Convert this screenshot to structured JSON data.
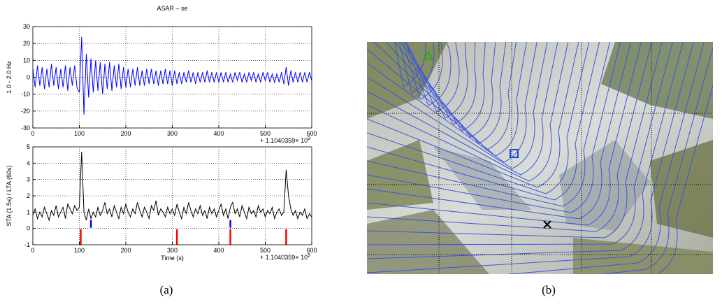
{
  "chart_data": [
    {
      "type": "line",
      "title": "ASAR – se",
      "ylabel": "1.0 - 2.0 Hz",
      "x_offset_label": "+ 1.1040359× 10",
      "x_offset_exponent": "9",
      "color": "#0000ff",
      "grid": true,
      "xlim": [
        0,
        600
      ],
      "xticks": [
        0,
        100,
        200,
        300,
        400,
        500,
        600
      ],
      "ylim": [
        -30,
        30
      ],
      "yticks": [
        -30,
        -20,
        -10,
        0,
        10,
        20,
        30
      ],
      "x": [
        0,
        5,
        10,
        15,
        20,
        25,
        30,
        35,
        40,
        45,
        50,
        55,
        60,
        65,
        70,
        75,
        80,
        85,
        90,
        95,
        100,
        105,
        110,
        115,
        120,
        125,
        130,
        135,
        140,
        145,
        150,
        155,
        160,
        165,
        170,
        175,
        180,
        185,
        190,
        195,
        200,
        205,
        210,
        215,
        220,
        225,
        230,
        235,
        240,
        245,
        250,
        255,
        260,
        265,
        270,
        275,
        280,
        285,
        290,
        295,
        300,
        305,
        310,
        315,
        320,
        325,
        330,
        335,
        340,
        345,
        350,
        355,
        360,
        365,
        370,
        375,
        380,
        385,
        390,
        395,
        400,
        405,
        410,
        415,
        420,
        425,
        430,
        435,
        440,
        445,
        450,
        455,
        460,
        465,
        470,
        475,
        480,
        485,
        490,
        495,
        500,
        505,
        510,
        515,
        520,
        525,
        530,
        535,
        540,
        545,
        550,
        555,
        560,
        565,
        570,
        575,
        580,
        585,
        590,
        595,
        600
      ],
      "values": [
        5,
        -6,
        7,
        -5,
        6,
        -7,
        5,
        -6,
        8,
        -5,
        6,
        -7,
        5,
        -6,
        7,
        -8,
        6,
        -5,
        7,
        -6,
        -9,
        24,
        -22,
        14,
        -12,
        11,
        -9,
        10,
        -8,
        9,
        -10,
        8,
        -7,
        9,
        -8,
        7,
        -6,
        8,
        -7,
        6,
        -6,
        5,
        -6,
        5,
        -5,
        6,
        -5,
        4,
        -5,
        5,
        -4,
        5,
        -4,
        4,
        -5,
        4,
        -4,
        5,
        -4,
        4,
        -5,
        4,
        -4,
        3,
        -4,
        3,
        -3,
        4,
        -3,
        3,
        -4,
        3,
        -3,
        3,
        -3,
        4,
        -3,
        3,
        -3,
        3,
        -3,
        3,
        -3,
        3,
        -3,
        2,
        -3,
        3,
        -2,
        3,
        -3,
        2,
        -3,
        3,
        -2,
        3,
        -3,
        2,
        -3,
        3,
        -2,
        3,
        -3,
        2,
        -3,
        2,
        -3,
        3,
        -4,
        6,
        -5,
        4,
        -3,
        3,
        -3,
        3,
        -3,
        3,
        -3,
        3,
        -2
      ]
    },
    {
      "type": "line",
      "ylabel": "STA (1.5s) / LTA (60s)",
      "xlabel": "Time (s)",
      "x_offset_label": "+ 1.1040359× 10",
      "x_offset_exponent": "9",
      "color": "#000000",
      "grid": true,
      "xlim": [
        0,
        600
      ],
      "xticks": [
        0,
        100,
        200,
        300,
        400,
        500,
        600
      ],
      "ylim": [
        -1,
        5
      ],
      "yticks": [
        -1,
        0,
        1,
        2,
        3,
        4,
        5
      ],
      "x": [
        0,
        5,
        10,
        15,
        20,
        25,
        30,
        35,
        40,
        45,
        50,
        55,
        60,
        65,
        70,
        75,
        80,
        85,
        90,
        95,
        100,
        105,
        110,
        115,
        120,
        125,
        130,
        135,
        140,
        145,
        150,
        155,
        160,
        165,
        170,
        175,
        180,
        185,
        190,
        195,
        200,
        205,
        210,
        215,
        220,
        225,
        230,
        235,
        240,
        245,
        250,
        255,
        260,
        265,
        270,
        275,
        280,
        285,
        290,
        295,
        300,
        305,
        310,
        315,
        320,
        325,
        330,
        335,
        340,
        345,
        350,
        355,
        360,
        365,
        370,
        375,
        380,
        385,
        390,
        395,
        400,
        405,
        410,
        415,
        420,
        425,
        430,
        435,
        440,
        445,
        450,
        455,
        460,
        465,
        470,
        475,
        480,
        485,
        490,
        495,
        500,
        505,
        510,
        515,
        520,
        525,
        530,
        535,
        540,
        545,
        550,
        555,
        560,
        565,
        570,
        575,
        580,
        585,
        590,
        595,
        600
      ],
      "values": [
        0.8,
        1.2,
        0.6,
        1.0,
        0.7,
        1.3,
        0.9,
        0.5,
        1.1,
        0.8,
        1.4,
        0.7,
        1.0,
        1.3,
        0.6,
        1.5,
        1.2,
        0.9,
        1.4,
        1.1,
        1.3,
        4.7,
        1.0,
        0.5,
        1.2,
        0.6,
        1.0,
        0.7,
        1.3,
        0.8,
        1.1,
        1.6,
        0.9,
        1.2,
        0.7,
        1.4,
        1.0,
        0.6,
        1.3,
        0.9,
        1.5,
        1.0,
        0.7,
        1.2,
        0.9,
        1.6,
        1.1,
        0.7,
        1.3,
        1.0,
        0.6,
        1.4,
        1.1,
        1.7,
        0.8,
        1.2,
        1.0,
        0.7,
        1.3,
        0.9,
        1.2,
        0.8,
        1.5,
        1.0,
        0.6,
        1.3,
        0.9,
        1.6,
        1.1,
        0.7,
        1.2,
        0.9,
        1.4,
        0.8,
        1.1,
        0.6,
        1.3,
        0.9,
        1.2,
        0.7,
        1.1,
        1.5,
        0.8,
        1.2,
        0.6,
        1.3,
        1.6,
        0.9,
        1.2,
        0.7,
        1.4,
        1.0,
        0.6,
        1.3,
        0.9,
        1.1,
        0.7,
        1.4,
        1.0,
        1.2,
        0.7,
        1.1,
        0.9,
        1.3,
        0.6,
        1.0,
        1.2,
        0.8,
        1.0,
        3.6,
        2.0,
        1.2,
        0.8,
        1.1,
        0.6,
        1.0,
        0.8,
        1.2,
        0.6,
        0.9,
        0.7
      ],
      "picks": [
        {
          "color": "#ff0000",
          "x": [
            103,
            310,
            425,
            545
          ]
        },
        {
          "color": "#0000ff",
          "x": [
            125,
            425
          ]
        }
      ]
    }
  ],
  "captions": [
    "(a)",
    "(b)"
  ]
}
